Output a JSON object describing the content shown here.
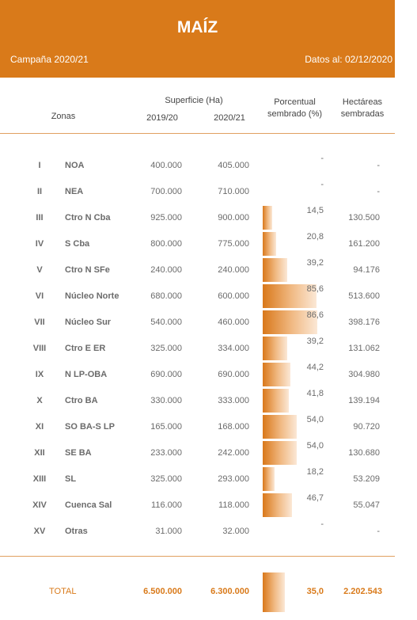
{
  "header": {
    "title": "MAÍZ",
    "campaign": "Campaña 2020/21",
    "date": "Datos al: 02/12/2020",
    "accent": "#d97a1a"
  },
  "columns": {
    "superficie": "Superficie (Ha)",
    "y1": "2019/20",
    "y2": "2020/21",
    "zonas": "Zonas",
    "porcentual": [
      "Porcentual",
      "sembrado (%)"
    ],
    "hectareas": [
      "Hectáreas",
      "sembradas"
    ]
  },
  "rows": [
    {
      "roman": "I",
      "zona": "NOA",
      "s1": "400.000",
      "s2": "405.000",
      "pct": "-",
      "pct_value": 0,
      "ha": "-"
    },
    {
      "roman": "II",
      "zona": "NEA",
      "s1": "700.000",
      "s2": "710.000",
      "pct": "-",
      "pct_value": 0,
      "ha": "-"
    },
    {
      "roman": "III",
      "zona": "Ctro N Cba",
      "s1": "925.000",
      "s2": "900.000",
      "pct": "14,5",
      "pct_value": 14.5,
      "ha": "130.500"
    },
    {
      "roman": "IV",
      "zona": "S Cba",
      "s1": "800.000",
      "s2": "775.000",
      "pct": "20,8",
      "pct_value": 20.8,
      "ha": "161.200"
    },
    {
      "roman": "V",
      "zona": "Ctro N SFe",
      "s1": "240.000",
      "s2": "240.000",
      "pct": "39,2",
      "pct_value": 39.2,
      "ha": "94.176"
    },
    {
      "roman": "VI",
      "zona": "Núcleo Norte",
      "s1": "680.000",
      "s2": "600.000",
      "pct": "85,6",
      "pct_value": 85.6,
      "ha": "513.600"
    },
    {
      "roman": "VII",
      "zona": "Núcleo Sur",
      "s1": "540.000",
      "s2": "460.000",
      "pct": "86,6",
      "pct_value": 86.6,
      "ha": "398.176"
    },
    {
      "roman": "VIII",
      "zona": "Ctro E ER",
      "s1": "325.000",
      "s2": "334.000",
      "pct": "39,2",
      "pct_value": 39.2,
      "ha": "131.062"
    },
    {
      "roman": "IX",
      "zona": "N LP-OBA",
      "s1": "690.000",
      "s2": "690.000",
      "pct": "44,2",
      "pct_value": 44.2,
      "ha": "304.980"
    },
    {
      "roman": "X",
      "zona": "Ctro BA",
      "s1": "330.000",
      "s2": "333.000",
      "pct": "41,8",
      "pct_value": 41.8,
      "ha": "139.194"
    },
    {
      "roman": "XI",
      "zona": "SO BA-S LP",
      "s1": "165.000",
      "s2": "168.000",
      "pct": "54,0",
      "pct_value": 54.0,
      "ha": "90.720"
    },
    {
      "roman": "XII",
      "zona": "SE BA",
      "s1": "233.000",
      "s2": "242.000",
      "pct": "54,0",
      "pct_value": 54.0,
      "ha": "130.680"
    },
    {
      "roman": "XIII",
      "zona": "SL",
      "s1": "325.000",
      "s2": "293.000",
      "pct": "18,2",
      "pct_value": 18.2,
      "ha": "53.209"
    },
    {
      "roman": "XIV",
      "zona": "Cuenca Sal",
      "s1": "116.000",
      "s2": "118.000",
      "pct": "46,7",
      "pct_value": 46.7,
      "ha": "55.047"
    },
    {
      "roman": "XV",
      "zona": "Otras",
      "s1": "31.000",
      "s2": "32.000",
      "pct": "-",
      "pct_value": 0,
      "ha": "-"
    }
  ],
  "total": {
    "label": "TOTAL",
    "s1": "6.500.000",
    "s2": "6.300.000",
    "pct": "35,0",
    "pct_value": 35.0,
    "ha": "2.202.543"
  }
}
